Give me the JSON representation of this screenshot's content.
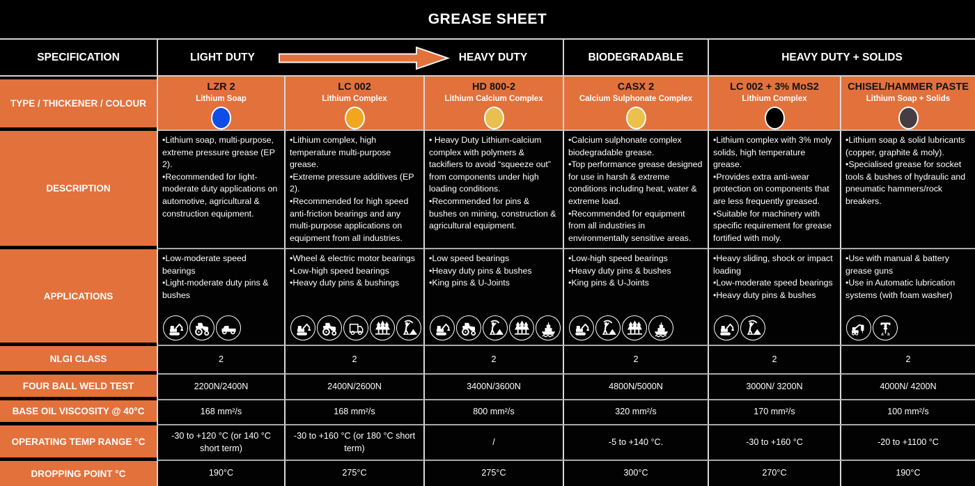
{
  "title": "GREASE SHEET",
  "colors": {
    "orange": "#E2713C",
    "border_light": "#D8D8D8",
    "border_mid": "#A9A9A9",
    "dot_blue": "#0F4DE8",
    "dot_amber": "#F2A61F",
    "dot_gold": "#E9BF4F",
    "dot_gold2": "#ECC14B",
    "dot_black": "#000000",
    "dot_charcoal": "#463D43"
  },
  "header": {
    "spec_label": "SPECIFICATION",
    "group_light": "LIGHT DUTY",
    "group_heavy": "HEAVY DUTY",
    "group_bio": "BIODEGRADABLE",
    "group_solids": "HEAVY DUTY + SOLIDS"
  },
  "row_labels": {
    "type": "TYPE / THICKENER / COLOUR",
    "description": "DESCRIPTION",
    "applications": "APPLICATIONS",
    "nlgi": "NLGI CLASS",
    "four_ball": "FOUR BALL WELD TEST",
    "viscosity": "BASE OIL VISCOSITY @ 40°C",
    "temp_range": "OPERATING TEMP RANGE °C",
    "dropping_point": "DROPPING POINT °C"
  },
  "columns": [
    {
      "name": "LZR 2",
      "thickener": "Lithium Soap",
      "dot_color": "#0F4DE8",
      "description": [
        "•Lithium soap, multi-purpose, extreme pressure grease (EP 2).",
        "•Recommended for light-moderate duty applications on automotive, agricultural & construction equipment."
      ],
      "applications": [
        "•Low-moderate speed bearings",
        "•Light-moderate duty pins & bushes"
      ],
      "app_icons": [
        "excavator",
        "tractor",
        "pickup-truck"
      ],
      "nlgi": "2",
      "four_ball": "2200N/2400N",
      "viscosity": "168 mm²/s",
      "temp_range": "-30 to +120 °C (or 140 °C short term)",
      "dropping_point": "190°C"
    },
    {
      "name": "LC 002",
      "thickener": "Lithium Complex",
      "dot_color": "#F2A61F",
      "description": [
        "•Lithium complex, high temperature multi-purpose grease.",
        "•Extreme pressure additives (EP 2).",
        "•Recommended for high speed anti-friction bearings and any multi-purpose applications on equipment from all industries."
      ],
      "applications": [
        "•Wheel & electric motor bearings",
        "•Low-high speed bearings",
        "•Heavy duty pins & bushings"
      ],
      "app_icons": [
        "excavator",
        "tractor",
        "box-truck",
        "forestry",
        "mining"
      ],
      "nlgi": "2",
      "four_ball": "2400N/2600N",
      "viscosity": "168 mm²/s",
      "temp_range": "-30 to +160 °C (or 180 °C short term)",
      "dropping_point": "275°C"
    },
    {
      "name": "HD 800-2",
      "thickener": "Lithium Calcium Complex",
      "dot_color": "#E9BF4F",
      "description": [
        "• Heavy Duty Lithium-calcium complex with polymers & tackifiers to avoid “squeeze out” from components under high loading conditions.",
        "•Recommended for pins & bushes on mining, construction & agricultural equipment."
      ],
      "applications": [
        "•Low speed bearings",
        "•Heavy duty pins & bushes",
        "•King pins & U-Joints"
      ],
      "app_icons": [
        "excavator",
        "tractor",
        "mining",
        "forestry",
        "ship"
      ],
      "nlgi": "2",
      "four_ball": "3400N/3600N",
      "viscosity": "800 mm²/s",
      "temp_range": "/",
      "dropping_point": "275°C"
    },
    {
      "name": "CASX 2",
      "thickener": "Calcium Sulphonate Complex",
      "dot_color": "#ECC14B",
      "description": [
        "•Calcium sulphonate complex biodegradable grease.",
        "•Top performance grease designed for use in harsh & extreme conditions including heat, water & extreme load.",
        "•Recommended for equipment from all industries in environmentally sensitive areas."
      ],
      "applications": [
        "•Low-high speed bearings",
        "•Heavy duty pins & bushes",
        "•King pins & U-Joints"
      ],
      "app_icons": [
        "excavator",
        "mining",
        "forestry",
        "ship"
      ],
      "nlgi": "2",
      "four_ball": "4800N/5000N",
      "viscosity": "320 mm²/s",
      "temp_range": "-5 to +140 °C.",
      "dropping_point": "300°C"
    },
    {
      "name": "LC 002 + 3% MoS2",
      "thickener": "Lithium Complex",
      "dot_color": "#000000",
      "description": [
        "•Lithium complex with 3% moly solids, high temperature grease.",
        "•Provides extra anti-wear protection on components that are less frequently greased.",
        "•Suitable for machinery with specific requirement for grease fortified with moly."
      ],
      "applications": [
        "•Heavy sliding, shock or impact loading",
        "•Low-moderate speed bearings",
        "•Heavy duty pins & bushes"
      ],
      "app_icons": [
        "excavator",
        "mining"
      ],
      "nlgi": "2",
      "four_ball": "3000N/ 3200N",
      "viscosity": "170 mm²/s",
      "temp_range": "-30 to +160 °C",
      "dropping_point": "270°C"
    },
    {
      "name": "CHISEL/HAMMER PASTE",
      "thickener": "Lithium Soap + Solids",
      "dot_color": "#463D43",
      "description": [
        "•Lithium soap & solid lubricants (copper, graphite & moly).",
        "•Specialised grease for socket tools & bushes of hydraulic and pneumatic hammers/rock breakers."
      ],
      "applications": [
        "•Use with manual & battery grease guns",
        "•Use in Automatic lubrication systems (with foam washer)"
      ],
      "app_icons": [
        "breaker-rig",
        "jackhammer"
      ],
      "nlgi": "2",
      "four_ball": "4000N/ 4200N",
      "viscosity": "100 mm²/s",
      "temp_range": "-20 to +1100 °C",
      "dropping_point": "190°C"
    }
  ]
}
